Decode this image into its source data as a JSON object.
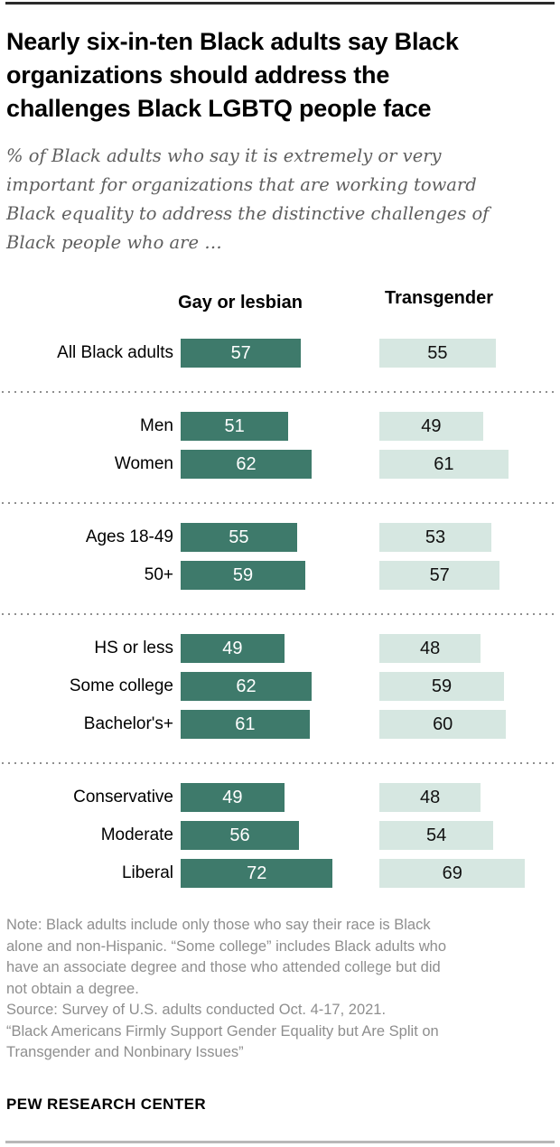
{
  "page": {
    "title": "Nearly six-in-ten Black adults say Black\norganizations should address the\nchallenges Black LGBTQ people face",
    "subtitle": "% of Black adults who say it is extremely or very\nimportant for organizations that are working toward\nBlack equality to address the distinctive challenges of\nBlack people who are …",
    "note": "Note: Black adults include only those who say their race is Black\nalone and non-Hispanic. “Some college” includes Black adults who\nhave an associate degree and those who attended college but did\nnot obtain a degree.",
    "source": "Source: Survey of U.S. adults conducted Oct. 4-17, 2021.",
    "report": "“Black Americans Firmly Support Gender Equality but Are Split on\nTransgender and Nonbinary Issues”",
    "footer": "PEW RESEARCH CENTER"
  },
  "chart_data": {
    "type": "bar",
    "orientation": "horizontal",
    "title": "Nearly six-in-ten Black adults say Black organizations should address the challenges Black LGBTQ people face",
    "value_unit": "% of Black adults saying extremely/very important",
    "xlim": [
      0,
      100
    ],
    "grid": false,
    "legend_position": "column-headers",
    "categories": [
      "All Black adults",
      "Men",
      "Women",
      "Ages 18-49",
      "50+",
      "HS or less",
      "Some college",
      "Bachelor's+",
      "Conservative",
      "Moderate",
      "Liberal"
    ],
    "series": [
      {
        "name": "Gay or lesbian",
        "color": "#3e7a6b",
        "text_color": "#ffffff",
        "values": [
          57,
          51,
          62,
          55,
          59,
          49,
          62,
          61,
          49,
          56,
          72
        ]
      },
      {
        "name": "Transgender",
        "color": "#d6e7e1",
        "text_color": "#111111",
        "values": [
          55,
          49,
          61,
          53,
          57,
          48,
          59,
          60,
          48,
          54,
          69
        ]
      }
    ],
    "groups": [
      [
        0
      ],
      [
        1,
        2
      ],
      [
        3,
        4
      ],
      [
        5,
        6,
        7
      ],
      [
        8,
        9,
        10
      ]
    ]
  }
}
